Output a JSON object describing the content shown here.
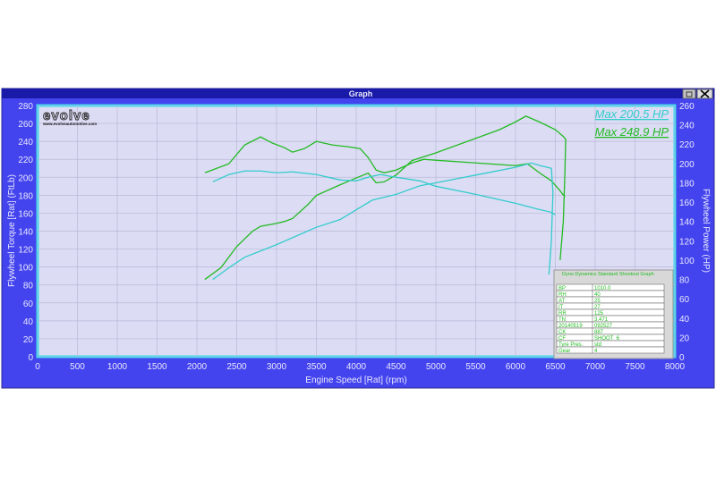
{
  "window": {
    "title": "Graph",
    "restore_icon": "restore-icon",
    "close_icon": "close-icon"
  },
  "logo": {
    "text": "evolve",
    "url": "www.evolveautomotive.com"
  },
  "annotations": [
    {
      "text": "Max 200.5 HP",
      "color": "#33cccc"
    },
    {
      "text": "Max 248.9 HP",
      "color": "#22bb22"
    }
  ],
  "info_table": {
    "title": "Dyno Dynamics Standard Shootout Graph",
    "rows": [
      [
        "BP",
        "1010.0"
      ],
      [
        "RH",
        "40"
      ],
      [
        "AT",
        "25"
      ],
      [
        "IT",
        "27"
      ],
      [
        "RR",
        "125"
      ],
      [
        "TN",
        "3.471"
      ],
      [
        "20140519",
        "092527"
      ],
      [
        "CK",
        "887"
      ],
      [
        "CF",
        "SHOOT_6"
      ],
      [
        "Tyre Pres.",
        "std"
      ],
      [
        "Gear",
        "4"
      ]
    ]
  },
  "chart_data": {
    "type": "line",
    "xlabel": "Engine Speed [Rat] (rpm)",
    "ylabel": "Flywheel Torque [Rat] (FtLb)",
    "y2label": "Flywheel Power (HP)",
    "xlim": [
      0,
      8000
    ],
    "ylim": [
      0,
      280
    ],
    "y2lim": [
      0,
      260
    ],
    "xticks": [
      0,
      500,
      1000,
      1500,
      2000,
      2500,
      3000,
      3500,
      4000,
      4500,
      5000,
      5500,
      6000,
      6500,
      7000,
      7500,
      8000
    ],
    "yticks": [
      0,
      20,
      40,
      60,
      80,
      100,
      120,
      140,
      160,
      180,
      200,
      220,
      240,
      260,
      280
    ],
    "y2ticks": [
      0,
      20,
      40,
      60,
      80,
      100,
      120,
      140,
      160,
      180,
      200,
      220,
      240,
      260
    ],
    "grid": true,
    "colors": {
      "plot_bg": "#dcdcf4",
      "frame": "#0000aa",
      "window": "#4444ee",
      "border": "#33ddee"
    },
    "series": [
      {
        "axis": "left",
        "color": "#22bb22",
        "points": [
          [
            2100,
            205
          ],
          [
            2400,
            215
          ],
          [
            2600,
            236
          ],
          [
            2800,
            245
          ],
          [
            2950,
            238
          ],
          [
            3100,
            233
          ],
          [
            3200,
            228
          ],
          [
            3350,
            232
          ],
          [
            3500,
            240
          ],
          [
            3700,
            236
          ],
          [
            3900,
            234
          ],
          [
            4050,
            232
          ],
          [
            4150,
            222
          ],
          [
            4250,
            208
          ],
          [
            4350,
            205
          ],
          [
            4500,
            208
          ],
          [
            4700,
            216
          ],
          [
            4850,
            220
          ],
          [
            5000,
            219
          ],
          [
            5500,
            216
          ],
          [
            6000,
            213
          ],
          [
            6150,
            215
          ],
          [
            6300,
            205
          ],
          [
            6450,
            196
          ],
          [
            6550,
            186
          ],
          [
            6620,
            178
          ]
        ]
      },
      {
        "axis": "right",
        "color": "#22bb22",
        "points": [
          [
            2100,
            80
          ],
          [
            2300,
            92
          ],
          [
            2500,
            114
          ],
          [
            2700,
            130
          ],
          [
            2800,
            135
          ],
          [
            3000,
            138
          ],
          [
            3100,
            140
          ],
          [
            3200,
            143
          ],
          [
            3400,
            158
          ],
          [
            3500,
            167
          ],
          [
            3800,
            178
          ],
          [
            4000,
            185
          ],
          [
            4150,
            190
          ],
          [
            4250,
            180
          ],
          [
            4350,
            181
          ],
          [
            4500,
            188
          ],
          [
            4700,
            203
          ],
          [
            5000,
            211
          ],
          [
            5500,
            226
          ],
          [
            5800,
            235
          ],
          [
            6000,
            243
          ],
          [
            6130,
            249
          ],
          [
            6300,
            243
          ],
          [
            6500,
            235
          ],
          [
            6600,
            228
          ],
          [
            6630,
            225
          ],
          [
            6620,
            190
          ],
          [
            6600,
            140
          ],
          [
            6560,
            100
          ]
        ]
      },
      {
        "axis": "left",
        "color": "#33cccc",
        "points": [
          [
            2200,
            195
          ],
          [
            2400,
            203
          ],
          [
            2600,
            207
          ],
          [
            2800,
            207
          ],
          [
            3000,
            205
          ],
          [
            3200,
            206
          ],
          [
            3500,
            203
          ],
          [
            3800,
            197
          ],
          [
            4000,
            196
          ],
          [
            4150,
            200
          ],
          [
            4300,
            203
          ],
          [
            4500,
            200
          ],
          [
            4800,
            196
          ],
          [
            5000,
            190
          ],
          [
            5500,
            181
          ],
          [
            6000,
            171
          ],
          [
            6300,
            164
          ],
          [
            6450,
            161
          ],
          [
            6500,
            158
          ]
        ]
      },
      {
        "axis": "right",
        "color": "#33cccc",
        "points": [
          [
            2200,
            80
          ],
          [
            2400,
            92
          ],
          [
            2600,
            103
          ],
          [
            3000,
            116
          ],
          [
            3500,
            134
          ],
          [
            3800,
            142
          ],
          [
            4000,
            152
          ],
          [
            4200,
            162
          ],
          [
            4500,
            168
          ],
          [
            4800,
            177
          ],
          [
            5000,
            180
          ],
          [
            5500,
            188
          ],
          [
            6000,
            196
          ],
          [
            6200,
            200.5
          ],
          [
            6300,
            198
          ],
          [
            6450,
            195
          ],
          [
            6470,
            170
          ],
          [
            6450,
            120
          ],
          [
            6420,
            85
          ]
        ]
      }
    ]
  }
}
